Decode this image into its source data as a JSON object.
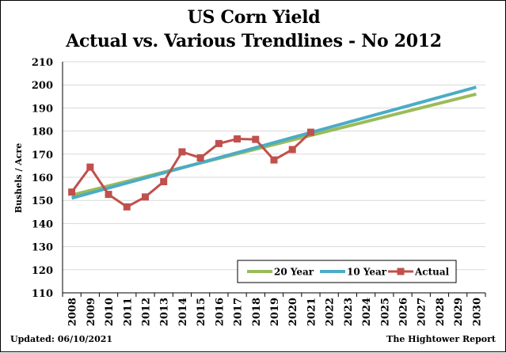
{
  "chart_data": {
    "type": "line",
    "title": "US Corn Yield",
    "subtitle": "Actual vs. Various Trendlines - No 2012",
    "ylabel": "Bushels / Acre",
    "xlabel": "",
    "ylim": [
      110,
      210
    ],
    "yticks": [
      110,
      120,
      130,
      140,
      150,
      160,
      170,
      180,
      190,
      200,
      210
    ],
    "x": [
      2008,
      2009,
      2010,
      2011,
      2012,
      2013,
      2014,
      2015,
      2016,
      2017,
      2018,
      2019,
      2020,
      2021,
      2022,
      2023,
      2024,
      2025,
      2026,
      2027,
      2028,
      2029,
      2030
    ],
    "grid": true,
    "legend_position": "bottom-right",
    "series": [
      {
        "name": "20 Year",
        "color": "#9bbb59",
        "x": [
          2008,
          2030
        ],
        "values": [
          152.3,
          196.0
        ]
      },
      {
        "name": "10 Year",
        "color": "#4bacc6",
        "x": [
          2008,
          2030
        ],
        "values": [
          151.0,
          199.0
        ]
      },
      {
        "name": "Actual",
        "color": "#c0504d",
        "marker": "square",
        "x": [
          2008,
          2009,
          2010,
          2011,
          2012,
          2013,
          2014,
          2015,
          2016,
          2017,
          2018,
          2019,
          2020,
          2021
        ],
        "values": [
          153.6,
          164.4,
          152.6,
          147.2,
          151.5,
          158.1,
          171.0,
          168.4,
          174.6,
          176.6,
          176.4,
          167.5,
          172.0,
          179.5
        ]
      }
    ]
  },
  "footer": {
    "updated": "Updated: 06/10/2021",
    "source": "The Hightower Report"
  }
}
